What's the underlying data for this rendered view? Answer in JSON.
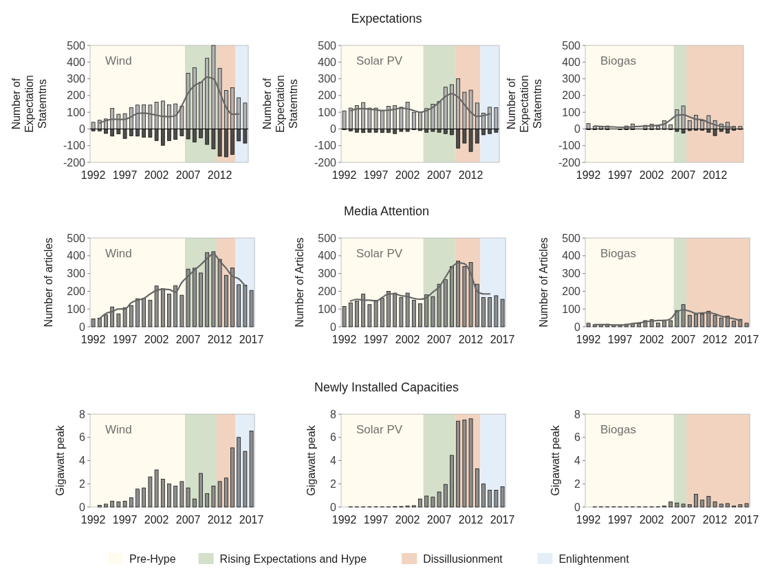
{
  "chart_data": [
    {
      "type": "bar",
      "stacked": true,
      "legend": "bottom",
      "ylabel": "Number of Expectation Statemtns",
      "annotations": [
        "Wind"
      ],
      "xlim": [
        1991.5,
        2016.5
      ],
      "xticks": [
        1992,
        1997,
        2002,
        2007,
        2012
      ],
      "ylim": [
        -200,
        500
      ],
      "yticks": [
        -200,
        -100,
        0,
        100,
        200,
        300,
        400,
        500
      ],
      "x": [
        1992,
        1993,
        1994,
        1995,
        1996,
        1997,
        1998,
        1999,
        2000,
        2001,
        2002,
        2003,
        2004,
        2005,
        2006,
        2007,
        2008,
        2009,
        2010,
        2011,
        2012,
        2013,
        2014,
        2015,
        2016
      ],
      "bands": [
        {
          "axis": "x",
          "from": 1991.5,
          "to": 2006.5,
          "label": "Pre-Hype",
          "color": "#fffbee"
        },
        {
          "axis": "x",
          "from": 2006.5,
          "to": 2011.5,
          "label": "Rising Expectations and Hype",
          "color": "#d4e0c9"
        },
        {
          "axis": "x",
          "from": 2011.5,
          "to": 2014.5,
          "label": "Dissillusionment",
          "color": "#f1d3bf"
        },
        {
          "axis": "x",
          "from": 2014.5,
          "to": 2016.5,
          "label": "Enlightenment",
          "color": "#e3eef8"
        }
      ],
      "series": [
        {
          "color": "#b4b4b4",
          "values": [
            40,
            52,
            60,
            123,
            88,
            92,
            128,
            143,
            145,
            143,
            160,
            167,
            145,
            150,
            137,
            333,
            367,
            280,
            423,
            500,
            363,
            230,
            247,
            187,
            155
          ]
        },
        {
          "color": "#4d4d4d",
          "values": [
            -12,
            -12,
            -27,
            -43,
            -30,
            -57,
            -42,
            -43,
            -50,
            -50,
            -70,
            -98,
            -70,
            -63,
            -42,
            -60,
            -78,
            -53,
            -93,
            -120,
            -163,
            -167,
            -153,
            -72,
            -85
          ]
        },
        {
          "type": "line",
          "color": "#666666",
          "x": [
            1993,
            1994,
            1995,
            1996,
            1997,
            1998,
            1999,
            2000,
            2001,
            2002,
            2003,
            2004,
            2005,
            2006,
            2007,
            2008,
            2009,
            2010,
            2011,
            2012,
            2013,
            2014,
            2015
          ],
          "values": [
            35,
            50,
            58,
            57,
            58,
            72,
            93,
            95,
            90,
            82,
            75,
            73,
            80,
            140,
            215,
            260,
            278,
            310,
            300,
            220,
            130,
            88,
            90
          ]
        }
      ]
    },
    {
      "type": "bar",
      "stacked": true,
      "title": "Expectations",
      "ylabel": "Number of Expectation Statemtns",
      "annotations": [
        "Solar PV"
      ],
      "xlim": [
        1991.5,
        2016.5
      ],
      "xticks": [
        1992,
        1997,
        2002,
        2007,
        2012
      ],
      "ylim": [
        -200,
        500
      ],
      "yticks": [
        -200,
        -100,
        0,
        100,
        200,
        300,
        400,
        500
      ],
      "x": [
        1992,
        1993,
        1994,
        1995,
        1996,
        1997,
        1998,
        1999,
        2000,
        2001,
        2002,
        2003,
        2004,
        2005,
        2006,
        2007,
        2008,
        2009,
        2010,
        2011,
        2012,
        2013,
        2014,
        2015,
        2016
      ],
      "bands": [
        {
          "axis": "x",
          "from": 1991.5,
          "to": 2004.5,
          "color": "#fffbee"
        },
        {
          "axis": "x",
          "from": 2004.5,
          "to": 2009.5,
          "color": "#d4e0c9"
        },
        {
          "axis": "x",
          "from": 2009.5,
          "to": 2013.5,
          "color": "#f1d3bf"
        },
        {
          "axis": "x",
          "from": 2013.5,
          "to": 2016.5,
          "color": "#e3eef8"
        }
      ],
      "series": [
        {
          "color": "#b4b4b4",
          "values": [
            108,
            125,
            140,
            158,
            125,
            125,
            110,
            135,
            140,
            130,
            160,
            100,
            100,
            122,
            148,
            165,
            250,
            265,
            300,
            220,
            232,
            155,
            95,
            130,
            128
          ]
        },
        {
          "color": "#4d4d4d",
          "values": [
            -5,
            -12,
            -20,
            -22,
            -20,
            -20,
            -22,
            -22,
            -28,
            -15,
            -15,
            -5,
            -10,
            -20,
            -15,
            -20,
            -28,
            -35,
            -115,
            -85,
            -135,
            -85,
            -35,
            -28,
            -20
          ]
        },
        {
          "type": "line",
          "color": "#666666",
          "x": [
            1993,
            1994,
            1995,
            1996,
            1997,
            1998,
            1999,
            2000,
            2001,
            2002,
            2003,
            2004,
            2005,
            2006,
            2007,
            2008,
            2009,
            2010,
            2011,
            2012,
            2013,
            2014,
            2015
          ],
          "values": [
            110,
            120,
            122,
            118,
            115,
            110,
            112,
            118,
            125,
            120,
            110,
            100,
            110,
            130,
            160,
            195,
            210,
            190,
            145,
            100,
            75,
            80,
            90
          ]
        }
      ]
    },
    {
      "type": "bar",
      "stacked": true,
      "ylabel": "Number of Expectation Statemtns",
      "annotations": [
        "Biogas"
      ],
      "xlim": [
        1991.5,
        2016.5
      ],
      "xticks": [
        1992,
        1997,
        2002,
        2007,
        2012
      ],
      "ylim": [
        -200,
        500
      ],
      "yticks": [
        -200,
        -100,
        0,
        100,
        200,
        300,
        400,
        500
      ],
      "x": [
        1992,
        1993,
        1994,
        1995,
        1996,
        1997,
        1998,
        1999,
        2000,
        2001,
        2002,
        2003,
        2004,
        2005,
        2006,
        2007,
        2008,
        2009,
        2010,
        2011,
        2012,
        2013,
        2014,
        2015,
        2016
      ],
      "bands": [
        {
          "axis": "x",
          "from": 1991.5,
          "to": 2005.5,
          "color": "#fffbee"
        },
        {
          "axis": "x",
          "from": 2005.5,
          "to": 2007.5,
          "color": "#d4e0c9"
        },
        {
          "axis": "x",
          "from": 2007.5,
          "to": 2016.5,
          "color": "#f1d3bf"
        }
      ],
      "series": [
        {
          "color": "#b4b4b4",
          "values": [
            32,
            15,
            12,
            18,
            null,
            null,
            18,
            30,
            null,
            22,
            28,
            18,
            50,
            25,
            115,
            138,
            50,
            82,
            50,
            80,
            50,
            30,
            40,
            15,
            15
          ]
        },
        {
          "color": "#4d4d4d",
          "values": [
            -5,
            -5,
            -3,
            -5,
            null,
            -5,
            -5,
            -5,
            null,
            -5,
            -5,
            -3,
            -3,
            -5,
            -15,
            -25,
            -10,
            -8,
            -8,
            -20,
            -40,
            -15,
            -25,
            -8,
            -3
          ]
        },
        {
          "type": "line",
          "color": "#666666",
          "x": [
            1993,
            1994,
            1995,
            1996,
            1997,
            1998,
            1999,
            2000,
            2001,
            2002,
            2003,
            2004,
            2005,
            2006,
            2007,
            2008,
            2009,
            2010,
            2011,
            2012,
            2013,
            2014,
            2015
          ],
          "values": [
            18,
            15,
            13,
            12,
            10,
            10,
            13,
            15,
            17,
            18,
            22,
            30,
            55,
            82,
            85,
            72,
            58,
            55,
            38,
            25,
            15,
            12,
            10
          ]
        }
      ]
    },
    {
      "type": "bar",
      "ylabel": "Number of articles",
      "annotations": [
        "Wind"
      ],
      "xlim": [
        1991.5,
        2017.5
      ],
      "xticks": [
        1992,
        1997,
        2002,
        2007,
        2012,
        2017
      ],
      "ylim": [
        0,
        500
      ],
      "yticks": [
        0,
        100,
        200,
        300,
        400,
        500
      ],
      "x": [
        1992,
        1993,
        1994,
        1995,
        1996,
        1997,
        1998,
        1999,
        2000,
        2001,
        2002,
        2003,
        2004,
        2005,
        2006,
        2007,
        2008,
        2009,
        2010,
        2011,
        2012,
        2013,
        2014,
        2015,
        2016,
        2017
      ],
      "bands": [
        {
          "axis": "x",
          "from": 1991.5,
          "to": 2006.5,
          "color": "#fffbee"
        },
        {
          "axis": "x",
          "from": 2006.5,
          "to": 2011.5,
          "color": "#d4e0c9"
        },
        {
          "axis": "x",
          "from": 2011.5,
          "to": 2014.5,
          "color": "#f1d3bf"
        },
        {
          "axis": "x",
          "from": 2014.5,
          "to": 2017.5,
          "color": "#e3eef8"
        }
      ],
      "series": [
        {
          "color": "#8f8f8f",
          "values": [
            45,
            48,
            67,
            112,
            73,
            108,
            120,
            158,
            160,
            150,
            230,
            215,
            185,
            232,
            178,
            325,
            330,
            303,
            418,
            423,
            380,
            290,
            332,
            237,
            235,
            205
          ]
        },
        {
          "type": "line",
          "color": "#666666",
          "x": [
            1993,
            1994,
            1995,
            1996,
            1997,
            1998,
            1999,
            2000,
            2001,
            2002,
            2003,
            2004,
            2005,
            2006,
            2007,
            2008,
            2009,
            2010,
            2011,
            2012,
            2013,
            2014,
            2015,
            2016
          ],
          "values": [
            45,
            75,
            85,
            100,
            100,
            135,
            150,
            160,
            185,
            205,
            212,
            210,
            195,
            250,
            285,
            320,
            350,
            385,
            410,
            370,
            330,
            285,
            270,
            230
          ]
        }
      ]
    },
    {
      "type": "bar",
      "title": "Media Attention",
      "ylabel": "Number of Articles",
      "annotations": [
        "Solar PV"
      ],
      "xlim": [
        1991.5,
        2017.5
      ],
      "xticks": [
        1992,
        1997,
        2002,
        2007,
        2012,
        2017
      ],
      "ylim": [
        0,
        500
      ],
      "yticks": [
        0,
        100,
        200,
        300,
        400,
        500
      ],
      "x": [
        1992,
        1993,
        1994,
        1995,
        1996,
        1997,
        1998,
        1999,
        2000,
        2001,
        2002,
        2003,
        2004,
        2005,
        2006,
        2007,
        2008,
        2009,
        2010,
        2011,
        2012,
        2013,
        2014,
        2015,
        2016,
        2017
      ],
      "bands": [
        {
          "axis": "x",
          "from": 1991.5,
          "to": 2004.5,
          "color": "#fffbee"
        },
        {
          "axis": "x",
          "from": 2004.5,
          "to": 2009.5,
          "color": "#d4e0c9"
        },
        {
          "axis": "x",
          "from": 2009.5,
          "to": 2013.5,
          "color": "#f1d3bf"
        },
        {
          "axis": "x",
          "from": 2013.5,
          "to": 2017.5,
          "color": "#e3eef8"
        }
      ],
      "series": [
        {
          "color": "#8f8f8f",
          "values": [
            115,
            135,
            145,
            185,
            125,
            150,
            160,
            200,
            190,
            165,
            190,
            150,
            130,
            180,
            170,
            240,
            265,
            340,
            370,
            340,
            362,
            240,
            165,
            165,
            175,
            155
          ]
        },
        {
          "type": "line",
          "color": "#666666",
          "x": [
            1993,
            1994,
            1995,
            1996,
            1997,
            1998,
            1999,
            2000,
            2001,
            2002,
            2003,
            2004,
            2005,
            2006,
            2007,
            2008,
            2009,
            2010,
            2011,
            2012,
            2013,
            2014,
            2015
          ],
          "values": [
            145,
            155,
            150,
            150,
            145,
            165,
            185,
            185,
            175,
            170,
            160,
            155,
            165,
            195,
            225,
            280,
            335,
            360,
            355,
            300,
            200,
            185,
            185
          ]
        }
      ]
    },
    {
      "type": "bar",
      "ylabel": "Number of Articles",
      "annotations": [
        "Biogas"
      ],
      "xlim": [
        1991.5,
        2017.5
      ],
      "xticks": [
        1992,
        1997,
        2002,
        2007,
        2012,
        2017
      ],
      "ylim": [
        0,
        500
      ],
      "yticks": [
        0,
        100,
        200,
        300,
        400,
        500
      ],
      "x": [
        1992,
        1993,
        1994,
        1995,
        1996,
        1997,
        1998,
        1999,
        2000,
        2001,
        2002,
        2003,
        2004,
        2005,
        2006,
        2007,
        2008,
        2009,
        2010,
        2011,
        2012,
        2013,
        2014,
        2015,
        2016,
        2017
      ],
      "bands": [
        {
          "axis": "x",
          "from": 1991.5,
          "to": 2005.5,
          "color": "#fffbee"
        },
        {
          "axis": "x",
          "from": 2005.5,
          "to": 2007.5,
          "color": "#d4e0c9"
        },
        {
          "axis": "x",
          "from": 2007.5,
          "to": 2017.5,
          "color": "#f1d3bf"
        }
      ],
      "series": [
        {
          "color": "#8f8f8f",
          "values": [
            20,
            12,
            12,
            15,
            10,
            10,
            15,
            18,
            18,
            35,
            40,
            22,
            38,
            35,
            92,
            125,
            65,
            70,
            72,
            88,
            65,
            50,
            60,
            32,
            42,
            20
          ]
        },
        {
          "type": "line",
          "color": "#666666",
          "x": [
            1993,
            1994,
            1995,
            1996,
            1997,
            1998,
            1999,
            2000,
            2001,
            2002,
            2003,
            2004,
            2005,
            2006,
            2007,
            2008,
            2009,
            2010,
            2011,
            2012,
            2013,
            2014,
            2015,
            2016
          ],
          "values": [
            12,
            12,
            12,
            10,
            10,
            12,
            18,
            22,
            28,
            32,
            35,
            35,
            45,
            85,
            95,
            88,
            75,
            78,
            80,
            72,
            60,
            52,
            45,
            35
          ]
        }
      ]
    },
    {
      "type": "bar",
      "ylabel": "Gigawatt peak",
      "annotations": [
        "Wind"
      ],
      "xlim": [
        1991.5,
        2017.5
      ],
      "xticks": [
        1992,
        1997,
        2002,
        2007,
        2012,
        2017
      ],
      "ylim": [
        0,
        8
      ],
      "yticks": [
        0,
        2,
        4,
        6,
        8
      ],
      "x": [
        1993,
        1994,
        1995,
        1996,
        1997,
        1998,
        1999,
        2000,
        2001,
        2002,
        2003,
        2004,
        2005,
        2006,
        2007,
        2008,
        2009,
        2010,
        2011,
        2012,
        2013,
        2014,
        2015,
        2016,
        2017
      ],
      "bands": [
        {
          "axis": "x",
          "from": 1991.5,
          "to": 2006.5,
          "color": "#fffbee"
        },
        {
          "axis": "x",
          "from": 2006.5,
          "to": 2011.5,
          "color": "#d4e0c9"
        },
        {
          "axis": "x",
          "from": 2011.5,
          "to": 2014.5,
          "color": "#f1d3bf"
        },
        {
          "axis": "x",
          "from": 2014.5,
          "to": 2017.5,
          "color": "#e3eef8"
        }
      ],
      "series": [
        {
          "color": "#8f8f8f",
          "values": [
            0.15,
            0.25,
            0.5,
            0.45,
            0.5,
            0.8,
            1.55,
            1.65,
            2.6,
            3.2,
            2.4,
            2.0,
            1.8,
            2.2,
            1.65,
            0.7,
            2.9,
            1.15,
            1.8,
            2.2,
            2.5,
            5.1,
            6.0,
            4.8,
            6.55
          ]
        }
      ]
    },
    {
      "type": "bar",
      "title": "Newly Installed Capacities",
      "ylabel": "Gigawatt peak",
      "annotations": [
        "Solar PV"
      ],
      "xlim": [
        1991.5,
        2017.5
      ],
      "xticks": [
        1992,
        1997,
        2002,
        2007,
        2012,
        2017
      ],
      "ylim": [
        0,
        8
      ],
      "yticks": [
        0,
        2,
        4,
        6,
        8
      ],
      "x": [
        1993,
        1994,
        1995,
        1996,
        1997,
        1998,
        1999,
        2000,
        2001,
        2002,
        2003,
        2004,
        2005,
        2006,
        2007,
        2008,
        2009,
        2010,
        2011,
        2012,
        2013,
        2014,
        2015,
        2016,
        2017
      ],
      "bands": [
        {
          "axis": "x",
          "from": 1991.5,
          "to": 2004.5,
          "color": "#fffbee"
        },
        {
          "axis": "x",
          "from": 2004.5,
          "to": 2009.5,
          "color": "#d4e0c9"
        },
        {
          "axis": "x",
          "from": 2009.5,
          "to": 2013.5,
          "color": "#f1d3bf"
        },
        {
          "axis": "x",
          "from": 2013.5,
          "to": 2017.5,
          "color": "#e3eef8"
        }
      ],
      "series": [
        {
          "color": "#8f8f8f",
          "values": [
            0.02,
            0.02,
            0.02,
            0.02,
            0.02,
            0.02,
            0.02,
            0.03,
            0.05,
            0.1,
            0.12,
            0.7,
            0.95,
            0.85,
            1.3,
            1.95,
            4.45,
            7.4,
            7.5,
            7.6,
            3.3,
            2.0,
            1.45,
            1.45,
            1.75
          ]
        }
      ]
    },
    {
      "type": "bar",
      "ylabel": "Gigawatt peak",
      "annotations": [
        "Biogas"
      ],
      "xlim": [
        1991.5,
        2017.5
      ],
      "xticks": [
        1992,
        1997,
        2002,
        2007,
        2012,
        2017
      ],
      "ylim": [
        0,
        8
      ],
      "yticks": [
        0,
        2,
        4,
        6,
        8
      ],
      "x": [
        1993,
        1994,
        1995,
        1996,
        1997,
        1998,
        1999,
        2000,
        2001,
        2002,
        2003,
        2004,
        2005,
        2006,
        2007,
        2008,
        2009,
        2010,
        2011,
        2012,
        2013,
        2014,
        2015,
        2016,
        2017
      ],
      "bands": [
        {
          "axis": "x",
          "from": 1991.5,
          "to": 2005.5,
          "color": "#fffbee"
        },
        {
          "axis": "x",
          "from": 2005.5,
          "to": 2007.5,
          "color": "#d4e0c9"
        },
        {
          "axis": "x",
          "from": 2007.5,
          "to": 2017.5,
          "color": "#f1d3bf"
        }
      ],
      "series": [
        {
          "color": "#8f8f8f",
          "values": [
            0.02,
            0.02,
            0.02,
            0.02,
            0.02,
            0.02,
            0.02,
            0.02,
            0.02,
            0.02,
            0.02,
            0.1,
            0.45,
            0.35,
            0.25,
            0.2,
            1.1,
            0.6,
            0.92,
            0.45,
            0.25,
            0.3,
            0.1,
            0.2,
            0.3
          ]
        }
      ]
    }
  ]
}
